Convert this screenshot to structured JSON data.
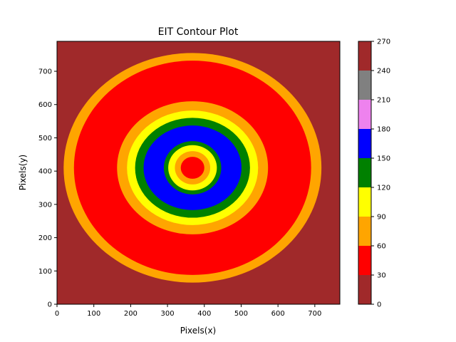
{
  "chart_data": {
    "type": "heatmap",
    "title": "EIT Contour Plot",
    "xlabel": "Pixels(x)",
    "ylabel": "Pixels(y)",
    "xlim": [
      0,
      768
    ],
    "ylim": [
      0,
      790
    ],
    "xticks": [
      0,
      100,
      200,
      300,
      400,
      500,
      600,
      700
    ],
    "yticks": [
      0,
      100,
      200,
      300,
      400,
      500,
      600,
      700
    ],
    "background_color": "#a0292a",
    "colorbar": {
      "ticks": [
        0,
        30,
        60,
        90,
        120,
        150,
        180,
        210,
        240,
        270
      ],
      "levels": [
        {
          "from": 0,
          "to": 30,
          "color": "#a0292a"
        },
        {
          "from": 30,
          "to": 60,
          "color": "#ff0000"
        },
        {
          "from": 60,
          "to": 90,
          "color": "#ffa500"
        },
        {
          "from": 90,
          "to": 120,
          "color": "#ffff00"
        },
        {
          "from": 120,
          "to": 150,
          "color": "#008000"
        },
        {
          "from": 150,
          "to": 180,
          "color": "#0000ff"
        },
        {
          "from": 180,
          "to": 210,
          "color": "#ee82ee"
        },
        {
          "from": 210,
          "to": 240,
          "color": "#808080"
        },
        {
          "from": 240,
          "to": 270,
          "color": "#a0292a"
        }
      ]
    },
    "center": [
      368,
      410
    ],
    "regions": [
      {
        "level": "60-90",
        "color": "#ffa500",
        "rx": 350,
        "ry": 345
      },
      {
        "level": "30-60",
        "color": "#ff0000",
        "rx": 322,
        "ry": 322
      },
      {
        "level": "60-90",
        "color": "#ffa500",
        "rx": 205,
        "ry": 200
      },
      {
        "level": "90-120",
        "color": "#ffff00",
        "rx": 178,
        "ry": 172
      },
      {
        "level": "120-150",
        "color": "#008000",
        "rx": 156,
        "ry": 150
      },
      {
        "level": "150-180",
        "color": "#0000ff",
        "rx": 133,
        "ry": 127
      },
      {
        "level": "120-150",
        "color": "#008000",
        "rx": 78,
        "ry": 80
      },
      {
        "level": "90-120",
        "color": "#ffff00",
        "rx": 66,
        "ry": 68
      },
      {
        "level": "60-90",
        "color": "#ffa500",
        "rx": 48,
        "ry": 50
      },
      {
        "level": "30-60",
        "color": "#ff0000",
        "rx": 32,
        "ry": 33
      }
    ]
  }
}
